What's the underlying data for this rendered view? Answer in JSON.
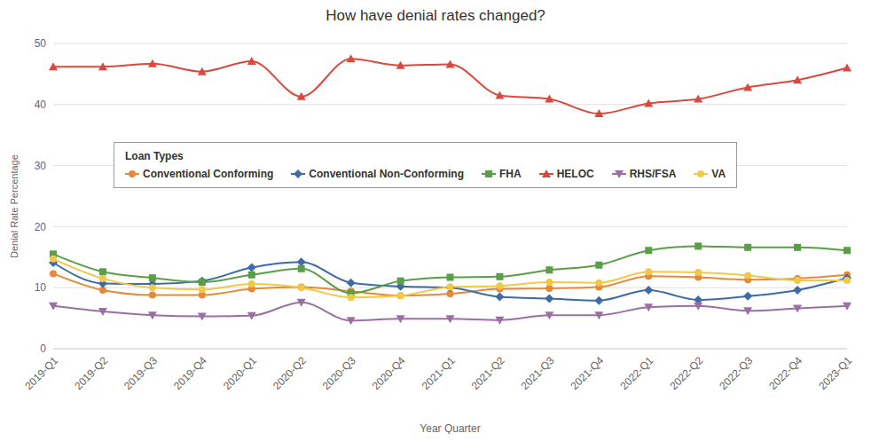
{
  "chart_data": {
    "type": "line",
    "title": "How have denial rates changed?",
    "x_label": "Year Quarter",
    "y_label": "Denial Rate Percentage",
    "legend_title": "Loan Types",
    "legend": "upper left",
    "grid": true,
    "categories": [
      "2019-Q1",
      "2019-Q2",
      "2019-Q3",
      "2019-Q4",
      "2020-Q1",
      "2020-Q2",
      "2020-Q3",
      "2020-Q4",
      "2021-Q1",
      "2021-Q2",
      "2021-Q3",
      "2021-Q4",
      "2022-Q1",
      "2022-Q2",
      "2022-Q3",
      "2022-Q4",
      "2023-Q1"
    ],
    "ylim": [
      0,
      50
    ],
    "yticks": [
      0,
      10,
      20,
      30,
      40,
      50
    ],
    "series": [
      {
        "name": "Conventional Conforming",
        "color": "#e8883a",
        "marker": "circle",
        "values": [
          12.3,
          9.6,
          8.8,
          8.8,
          9.8,
          10.1,
          9.4,
          8.7,
          9.0,
          9.8,
          9.9,
          10.1,
          11.9,
          11.7,
          11.3,
          11.5,
          12.1
        ]
      },
      {
        "name": "Conventional Non-Conforming",
        "color": "#3d6aa8",
        "marker": "diamond",
        "values": [
          14.1,
          10.7,
          10.6,
          11.1,
          13.3,
          14.2,
          10.8,
          10.2,
          10.0,
          8.5,
          8.2,
          7.9,
          9.6,
          8.0,
          8.6,
          9.6,
          11.6
        ]
      },
      {
        "name": "FHA",
        "color": "#5a9e47",
        "marker": "square",
        "values": [
          15.5,
          12.6,
          11.6,
          10.9,
          12.1,
          13.1,
          9.1,
          11.1,
          11.7,
          11.8,
          12.9,
          13.7,
          16.1,
          16.8,
          16.6,
          16.6,
          16.1
        ]
      },
      {
        "name": "HELOC",
        "color": "#d9493f",
        "marker": "triangle",
        "values": [
          46.2,
          46.2,
          46.7,
          45.4,
          47.1,
          41.3,
          47.5,
          46.4,
          46.6,
          41.5,
          40.9,
          38.5,
          40.2,
          40.9,
          42.8,
          44.0,
          46.0
        ]
      },
      {
        "name": "RHS/FSA",
        "color": "#9b6fa6",
        "marker": "triangle-down",
        "values": [
          7.0,
          6.1,
          5.5,
          5.3,
          5.4,
          7.6,
          4.6,
          4.9,
          4.9,
          4.7,
          5.5,
          5.5,
          6.8,
          7.0,
          6.2,
          6.6,
          7.0
        ]
      },
      {
        "name": "VA",
        "color": "#f0c94b",
        "marker": "circle",
        "values": [
          14.7,
          11.5,
          10.0,
          9.7,
          10.6,
          10.0,
          8.4,
          8.7,
          10.1,
          10.3,
          10.9,
          10.8,
          12.6,
          12.5,
          12.0,
          11.2,
          11.2
        ]
      }
    ]
  }
}
